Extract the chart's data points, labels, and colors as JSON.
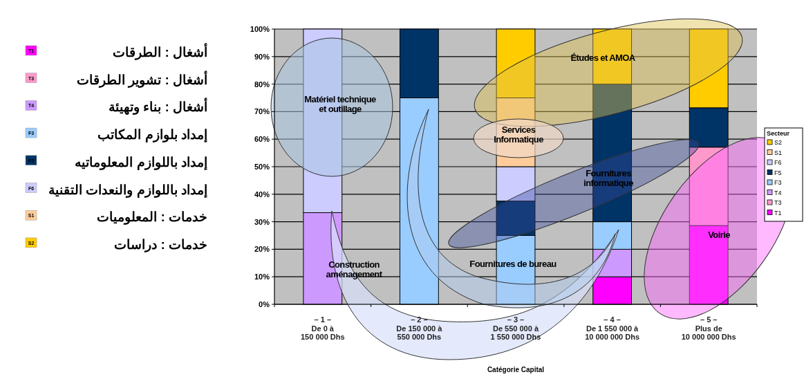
{
  "chart_data": {
    "type": "bar",
    "stacked": true,
    "xlabel": "Catégorie Capital",
    "legend": "right",
    "legend_title": "Secteur",
    "grid": "y",
    "categories": [
      "– 1 –\nDe 0 à\n150 000 Dhs",
      "– 2 –\nDe 150 000 à\n550 000 Dhs",
      "– 3 –\nDe 550 000 à\n1 550 000 Dhs",
      "– 4 –\nDe 1 550 000 à\n10 000 000 Dhs",
      "– 5 –\nPlus de\n10 000 000 Dhs"
    ],
    "ylim": [
      0,
      100
    ],
    "yticks": [
      {
        "value": 0,
        "label": "0%"
      },
      {
        "value": 10,
        "label": "10%"
      },
      {
        "value": 20,
        "label": "20%"
      },
      {
        "value": 30,
        "label": "30%"
      },
      {
        "value": 40,
        "label": "40%"
      },
      {
        "value": 50,
        "label": "50%"
      },
      {
        "value": 60,
        "label": "60%"
      },
      {
        "value": 70,
        "label": "70%"
      },
      {
        "value": 80,
        "label": "80%"
      },
      {
        "value": 90,
        "label": "90%"
      },
      {
        "value": 100,
        "label": "100%"
      }
    ],
    "series": [
      {
        "name": "T1",
        "color": "#ff00ff",
        "values": [
          0,
          0,
          0,
          10,
          28.6
        ]
      },
      {
        "name": "T3",
        "color": "#ff99cc",
        "values": [
          0,
          0,
          0,
          0,
          28.5
        ]
      },
      {
        "name": "T4",
        "color": "#cc99ff",
        "values": [
          33.3,
          0,
          0,
          10,
          0
        ]
      },
      {
        "name": "F3",
        "color": "#99ccff",
        "values": [
          0,
          75,
          25,
          10,
          0
        ]
      },
      {
        "name": "F5",
        "color": "#003366",
        "values": [
          0,
          25,
          12.5,
          50,
          14.3
        ]
      },
      {
        "name": "F6",
        "color": "#ccccff",
        "values": [
          66.7,
          0,
          12.5,
          0,
          0
        ]
      },
      {
        "name": "S1",
        "color": "#ffcc99",
        "values": [
          0,
          0,
          25,
          0,
          0
        ]
      },
      {
        "name": "S2",
        "color": "#ffcc00",
        "values": [
          0,
          0,
          25,
          20,
          28.6
        ]
      }
    ],
    "annotations": [
      "أشغال : الطرقات",
      "أشغال : تشوير الطرقات",
      "أشغال : بناء وتهيئة",
      "إمداد بلوازم المكاتب",
      "إمداد باللوازم المعلوماتيه",
      "إمداد باللوازم والنعدات التقنية",
      "خدمات : المعلوميات",
      "خدمات : دراسات",
      "Matériel technique\net outillage",
      "Construction\naménagement",
      "Fournitures de bureau",
      "Services\nInformatique",
      "Fournitures\ninformatique",
      "Études et AMOA",
      "Voirie"
    ]
  }
}
